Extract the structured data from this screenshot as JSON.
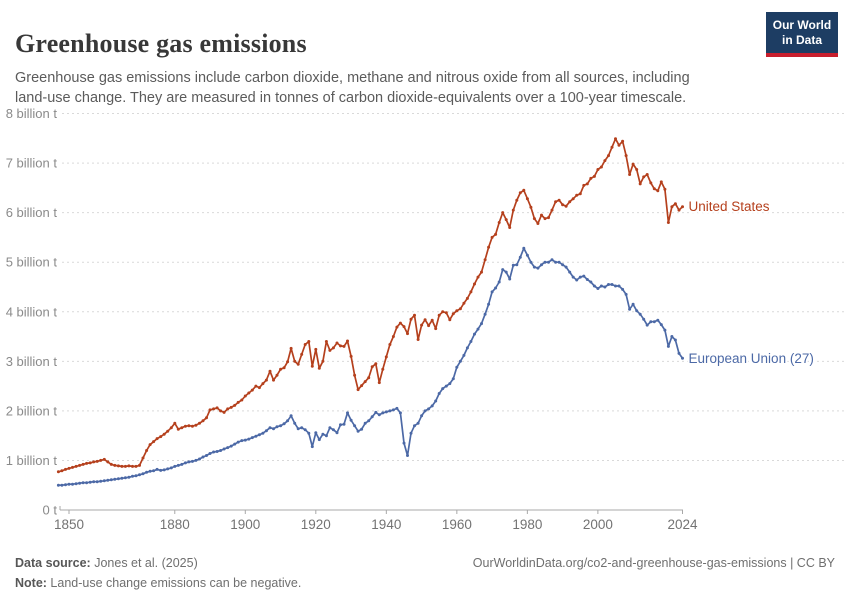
{
  "header": {
    "title": "Greenhouse gas emissions",
    "subtitle": "Greenhouse gas emissions include carbon dioxide, methane and nitrous oxide from all sources, including land-use change. They are measured in tonnes of carbon dioxide-equivalents over a 100-year timescale."
  },
  "logo": {
    "line1": "Our World",
    "line2": "in Data",
    "bg_color": "#1d3d63",
    "bar_color": "#c81e2d"
  },
  "chart_data": {
    "type": "line",
    "title": "Greenhouse gas emissions",
    "xlabel": "",
    "ylabel": "",
    "xlim": [
      1846,
      2024
    ],
    "ylim": [
      0,
      8
    ],
    "grid": "horizontal-dashed",
    "legend_position": "right-end-labels",
    "x_ticks": [
      1850,
      1880,
      1900,
      1920,
      1940,
      1960,
      1980,
      2000,
      2024
    ],
    "y_tick_values": [
      0,
      1,
      2,
      3,
      4,
      5,
      6,
      7,
      8
    ],
    "y_tick_labels": [
      "0 t",
      "1 billion t",
      "2 billion t",
      "3 billion t",
      "4 billion t",
      "5 billion t",
      "6 billion t",
      "7 billion t",
      "8 billion t"
    ],
    "unit": "billion tonnes CO2-equivalents",
    "start_year": 1847,
    "series": [
      {
        "name": "United States",
        "color": "#b5401d",
        "values": [
          0.77,
          0.79,
          0.82,
          0.84,
          0.86,
          0.88,
          0.9,
          0.92,
          0.94,
          0.95,
          0.97,
          0.98,
          1.0,
          1.02,
          0.97,
          0.92,
          0.9,
          0.89,
          0.88,
          0.88,
          0.89,
          0.88,
          0.88,
          0.9,
          1.05,
          1.2,
          1.32,
          1.38,
          1.44,
          1.48,
          1.53,
          1.59,
          1.66,
          1.75,
          1.63,
          1.66,
          1.69,
          1.7,
          1.69,
          1.71,
          1.75,
          1.8,
          1.86,
          2.02,
          2.04,
          2.06,
          2.0,
          1.97,
          2.04,
          2.07,
          2.11,
          2.17,
          2.22,
          2.3,
          2.36,
          2.42,
          2.5,
          2.47,
          2.55,
          2.62,
          2.8,
          2.62,
          2.72,
          2.84,
          2.87,
          2.99,
          3.26,
          3.0,
          2.94,
          3.14,
          3.34,
          3.4,
          2.9,
          3.24,
          2.86,
          3.0,
          3.4,
          3.22,
          3.27,
          3.37,
          3.31,
          3.3,
          3.41,
          3.1,
          2.72,
          2.43,
          2.51,
          2.59,
          2.67,
          2.89,
          2.95,
          2.57,
          2.84,
          3.09,
          3.34,
          3.5,
          3.69,
          3.77,
          3.7,
          3.56,
          3.85,
          3.93,
          3.44,
          3.73,
          3.84,
          3.72,
          3.83,
          3.66,
          3.93,
          4.0,
          3.98,
          3.84,
          3.96,
          4.02,
          4.06,
          4.17,
          4.27,
          4.4,
          4.56,
          4.7,
          4.8,
          5.05,
          5.3,
          5.5,
          5.56,
          5.8,
          6.0,
          5.86,
          5.7,
          6.05,
          6.25,
          6.4,
          6.45,
          6.28,
          6.11,
          5.88,
          5.78,
          5.95,
          5.88,
          5.9,
          6.05,
          6.22,
          6.25,
          6.16,
          6.13,
          6.22,
          6.28,
          6.35,
          6.38,
          6.55,
          6.58,
          6.69,
          6.73,
          6.87,
          6.92,
          7.05,
          7.15,
          7.32,
          7.49,
          7.36,
          7.44,
          7.15,
          6.77,
          6.98,
          6.87,
          6.58,
          6.72,
          6.77,
          6.6,
          6.48,
          6.44,
          6.62,
          6.47,
          5.8,
          6.12,
          6.18,
          6.05,
          6.12
        ]
      },
      {
        "name": "European Union (27)",
        "color": "#4c69a6",
        "values": [
          0.5,
          0.5,
          0.51,
          0.52,
          0.52,
          0.53,
          0.54,
          0.55,
          0.55,
          0.56,
          0.57,
          0.57,
          0.58,
          0.59,
          0.6,
          0.61,
          0.62,
          0.63,
          0.64,
          0.65,
          0.66,
          0.68,
          0.69,
          0.71,
          0.73,
          0.76,
          0.78,
          0.79,
          0.82,
          0.8,
          0.81,
          0.83,
          0.85,
          0.88,
          0.9,
          0.92,
          0.95,
          0.97,
          0.98,
          1.0,
          1.03,
          1.07,
          1.1,
          1.14,
          1.17,
          1.18,
          1.2,
          1.23,
          1.26,
          1.29,
          1.33,
          1.37,
          1.4,
          1.41,
          1.43,
          1.46,
          1.49,
          1.52,
          1.55,
          1.6,
          1.66,
          1.64,
          1.68,
          1.7,
          1.74,
          1.8,
          1.9,
          1.75,
          1.64,
          1.66,
          1.62,
          1.55,
          1.28,
          1.56,
          1.42,
          1.53,
          1.5,
          1.66,
          1.62,
          1.56,
          1.72,
          1.73,
          1.96,
          1.81,
          1.7,
          1.59,
          1.63,
          1.75,
          1.8,
          1.88,
          1.97,
          1.92,
          1.96,
          1.98,
          2.0,
          2.02,
          2.05,
          1.96,
          1.35,
          1.1,
          1.55,
          1.7,
          1.75,
          1.9,
          2.0,
          2.04,
          2.1,
          2.2,
          2.35,
          2.45,
          2.5,
          2.55,
          2.65,
          2.88,
          3.0,
          3.12,
          3.27,
          3.4,
          3.55,
          3.65,
          3.76,
          3.95,
          4.15,
          4.4,
          4.48,
          4.6,
          4.85,
          4.8,
          4.66,
          4.94,
          4.95,
          5.1,
          5.28,
          5.14,
          5.0,
          4.9,
          4.88,
          4.95,
          5.0,
          5.0,
          5.05,
          5.0,
          5.0,
          4.95,
          4.9,
          4.8,
          4.7,
          4.64,
          4.7,
          4.72,
          4.65,
          4.6,
          4.52,
          4.47,
          4.52,
          4.5,
          4.55,
          4.55,
          4.52,
          4.52,
          4.45,
          4.35,
          4.05,
          4.15,
          4.02,
          3.95,
          3.85,
          3.73,
          3.8,
          3.8,
          3.83,
          3.74,
          3.63,
          3.3,
          3.5,
          3.43,
          3.16,
          3.06
        ]
      }
    ]
  },
  "footer": {
    "source_label": "Data source:",
    "source_value": " Jones et al. (2025)",
    "note_label": "Note:",
    "note_value": " Land-use change emissions can be negative.",
    "right_text": "OurWorldinData.org/co2-and-greenhouse-gas-emissions | CC BY"
  }
}
